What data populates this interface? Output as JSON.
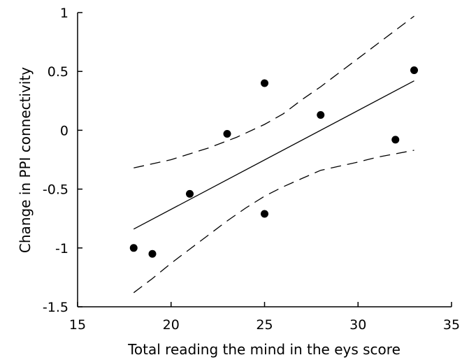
{
  "chart_data": {
    "type": "scatter",
    "title": "",
    "xlabel": "Total reading the mind in the eys score",
    "ylabel": "Change in PPI connectivity",
    "xlim": [
      15,
      35
    ],
    "ylim": [
      -1.5,
      1
    ],
    "xticks": [
      15,
      20,
      25,
      30,
      35
    ],
    "yticks": [
      1,
      0.5,
      0,
      -0.5,
      -1,
      -1.5
    ],
    "xtick_labels": [
      "15",
      "20",
      "25",
      "30",
      "35"
    ],
    "ytick_labels": [
      "1",
      "0.5",
      "0",
      "-0.5",
      "-1",
      "-1.5"
    ],
    "grid": false,
    "legend": "none",
    "points": [
      {
        "x": 18,
        "y": -1.0
      },
      {
        "x": 19,
        "y": -1.05
      },
      {
        "x": 21,
        "y": -0.54
      },
      {
        "x": 23,
        "y": -0.03
      },
      {
        "x": 25,
        "y": 0.4
      },
      {
        "x": 25,
        "y": -0.71
      },
      {
        "x": 28,
        "y": 0.13
      },
      {
        "x": 32,
        "y": -0.08
      },
      {
        "x": 33,
        "y": 0.51
      }
    ],
    "fit_line": {
      "x": [
        18,
        33
      ],
      "y": [
        -0.84,
        0.42
      ]
    },
    "ci_upper": {
      "x": [
        18,
        20,
        22,
        23.5,
        25,
        26,
        27,
        28,
        29,
        30,
        31,
        32,
        33
      ],
      "y": [
        -0.32,
        -0.25,
        -0.15,
        -0.06,
        0.05,
        0.14,
        0.26,
        0.37,
        0.49,
        0.61,
        0.73,
        0.85,
        0.97
      ]
    },
    "ci_lower": {
      "x": [
        18,
        19,
        20,
        21,
        22,
        23,
        24,
        25,
        26,
        27,
        28,
        30,
        31,
        32,
        33
      ],
      "y": [
        -1.38,
        -1.26,
        -1.13,
        -1.01,
        -0.89,
        -0.77,
        -0.66,
        -0.56,
        -0.48,
        -0.41,
        -0.34,
        -0.27,
        -0.23,
        -0.2,
        -0.17
      ]
    },
    "colors": {
      "points": "#000000",
      "line": "#000000",
      "axis": "#000000"
    }
  }
}
